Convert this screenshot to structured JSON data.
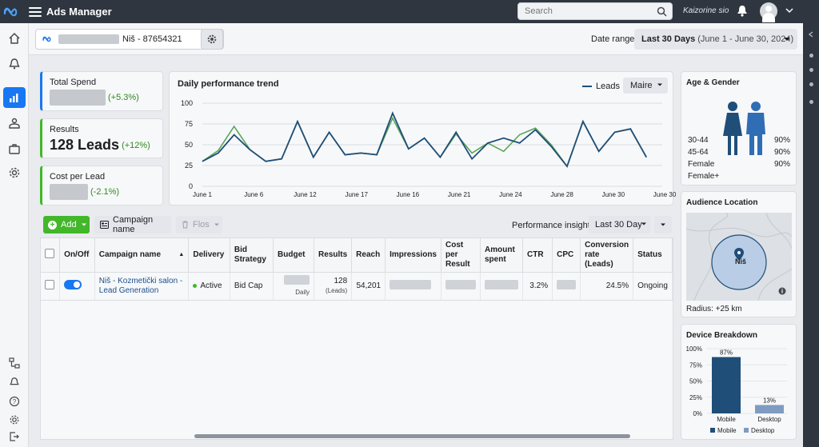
{
  "topbar": {
    "app_title": "Ads Manager",
    "search_placeholder": "Search",
    "user_name": "Kaizorine sio"
  },
  "account": {
    "name": "Niš - 87654321",
    "date_range_label": "Date range",
    "date_range_value": "Last 30 Days",
    "date_range_detail": "(June 1 - June 30, 2024)"
  },
  "kpis": {
    "total_spend": {
      "label": "Total Spend",
      "delta": "(+5.3%)"
    },
    "results": {
      "label": "Results",
      "value": "128 Leads",
      "delta": "(+12%)"
    },
    "cost_per_lead": {
      "label": "Cost per Lead",
      "delta": "(-2.1%)"
    }
  },
  "trend": {
    "title": "Daily performance trend",
    "legend_label": "Leads",
    "filter_label": "Maire"
  },
  "chart_data": {
    "type": "line",
    "title": "Daily performance trend",
    "ylim": [
      0,
      100
    ],
    "yticks": [
      0,
      25,
      50,
      75,
      100
    ],
    "xtick_labels": [
      "June 1",
      "June 6",
      "June 12",
      "June 17",
      "June 16",
      "June 21",
      "June 24",
      "June 28",
      "June 30",
      "June 30"
    ],
    "x": [
      1,
      2,
      3,
      4,
      5,
      6,
      7,
      8,
      9,
      10,
      11,
      12,
      13,
      14,
      15,
      16,
      17,
      18,
      19,
      20,
      21,
      22,
      23,
      24,
      25,
      26,
      27,
      28,
      29,
      30
    ],
    "series": [
      {
        "name": "Leads",
        "color": "#1f4e79",
        "values": [
          30,
          40,
          62,
          44,
          30,
          33,
          78,
          35,
          65,
          38,
          40,
          38,
          88,
          45,
          58,
          35,
          65,
          33,
          52,
          58,
          52,
          68,
          48,
          24,
          78,
          42,
          65,
          69,
          35,
          null
        ]
      },
      {
        "color": "#5aa55a",
        "values": [
          30,
          43,
          72,
          44,
          30,
          33,
          78,
          35,
          65,
          38,
          40,
          38,
          82,
          45,
          58,
          35,
          63,
          40,
          52,
          42,
          62,
          70,
          50,
          24,
          78,
          42,
          65,
          69,
          35,
          null
        ]
      }
    ]
  },
  "toolbar": {
    "add_label": "Add",
    "campaign_name_label": "Campaign name",
    "flos_label": "Flos",
    "perf_insights_label": "Performance insights:",
    "perf_select_value": "Last 30 Day"
  },
  "table": {
    "headers": {
      "onoff": "On/Off",
      "campaign": "Campaign name",
      "delivery": "Delivery",
      "bid": "Bid Strategy",
      "budget": "Budget",
      "results": "Results",
      "reach": "Reach",
      "impressions": "Impressions",
      "cost_per_result": "Cost per Result",
      "amount_spent": "Amount spent",
      "ctr": "CTR",
      "cpc": "CPC",
      "conversion": "Conversion rate (Leads)",
      "status": "Status"
    },
    "row": {
      "campaign": "Niš - Kozmetički salon - Lead Generation",
      "delivery": "Active",
      "bid": "Bid Cap",
      "budget_sub": "Daily",
      "results": "128",
      "results_sub": "(Leads)",
      "reach": "54,201",
      "ctr": "3.2%",
      "conversion": "24.5%",
      "status": "Ongoing"
    }
  },
  "age_gender": {
    "title": "Age & Gender",
    "rows": [
      {
        "label": "30-44",
        "value": "90%"
      },
      {
        "label": "45-64",
        "value": "90%"
      },
      {
        "label": "Female",
        "value": "90%"
      },
      {
        "label": "Female+",
        "value": ""
      }
    ],
    "female_color": "#1f4e79",
    "male_color": "#2f6db5"
  },
  "audience": {
    "title": "Audience Location",
    "city": "Niš",
    "radius": "Radius: +25 km"
  },
  "device": {
    "title": "Device Breakdown",
    "yticks": [
      "100%",
      "75%",
      "50%",
      "25%",
      "0%"
    ],
    "bars": [
      {
        "label": "Mobile",
        "value": 87,
        "display": "87%",
        "color": "#1f4e79"
      },
      {
        "label": "Desktop",
        "value": 13,
        "display": "13%",
        "color": "#7f9bc2"
      }
    ],
    "legend": [
      "Mobile",
      "Desktop"
    ]
  }
}
